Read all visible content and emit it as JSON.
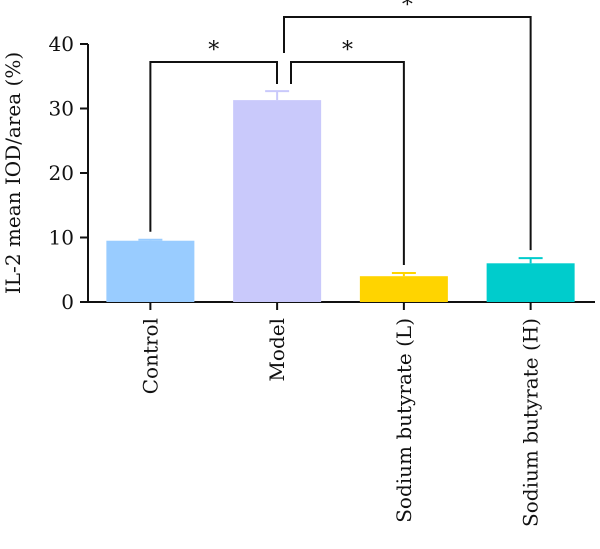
{
  "chart_data": {
    "type": "bar",
    "ylabel": "IL-2 mean IOD/area (%)",
    "ylim": [
      0,
      40
    ],
    "yticks": [
      0,
      10,
      20,
      30,
      40
    ],
    "categories": [
      "Control",
      "Model",
      "Sodium butyrate (L)",
      "Sodium butyrate (H)"
    ],
    "values": [
      9.5,
      31.3,
      4.0,
      6.0
    ],
    "errors": [
      0.15,
      1.4,
      0.5,
      0.8
    ],
    "colors": [
      "#99ccff",
      "#c9c9fb",
      "#ffd400",
      "#00cccc"
    ],
    "significance": [
      {
        "from": "Model",
        "to": "Control",
        "label": "*"
      },
      {
        "from": "Model",
        "to": "Sodium butyrate (L)",
        "label": "*"
      },
      {
        "from": "Model",
        "to": "Sodium butyrate (H)",
        "label": "*"
      }
    ]
  }
}
